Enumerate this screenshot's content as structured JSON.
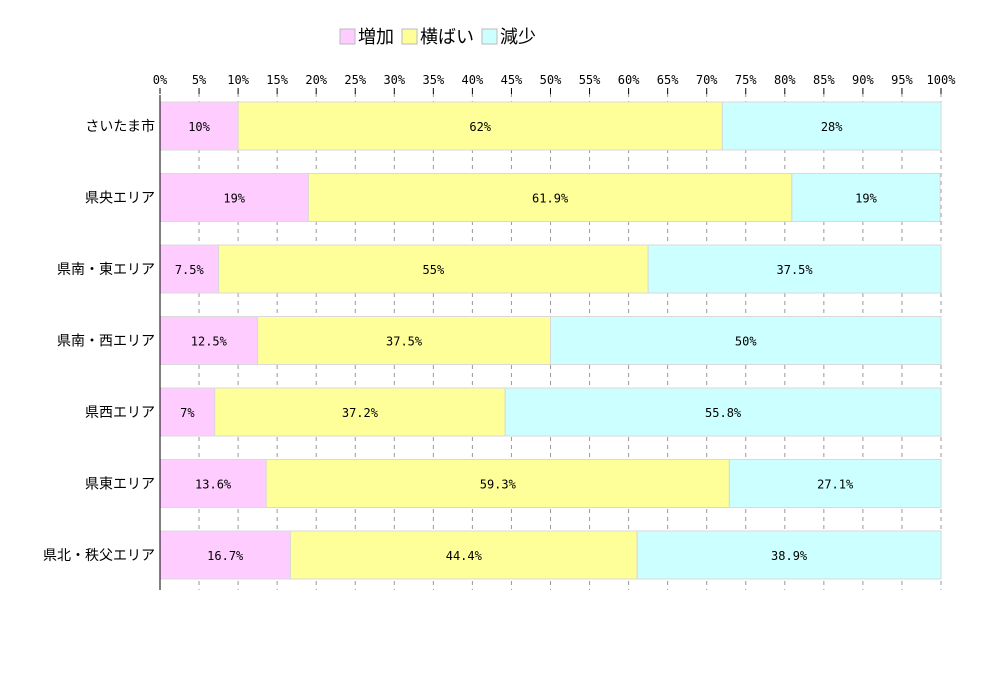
{
  "chart_data": {
    "type": "bar",
    "orientation": "horizontal",
    "stacked": true,
    "percent_stacked": true,
    "xlim": [
      0,
      100
    ],
    "xticks": [
      "0%",
      "5%",
      "10%",
      "15%",
      "20%",
      "25%",
      "30%",
      "35%",
      "40%",
      "45%",
      "50%",
      "55%",
      "60%",
      "65%",
      "70%",
      "75%",
      "80%",
      "85%",
      "90%",
      "95%",
      "100%"
    ],
    "grid": "vertical dashed",
    "legend_placement": "top-center",
    "categories": [
      "さいたま市",
      "県央エリア",
      "県南・東エリア",
      "県南・西エリア",
      "県西エリア",
      "県東エリア",
      "県北・秩父エリア"
    ],
    "series": [
      {
        "name": "増加",
        "color": "#ffccff",
        "values": [
          10,
          19,
          7.5,
          12.5,
          7,
          13.6,
          16.7
        ],
        "labels": [
          "10%",
          "19%",
          "7.5%",
          "12.5%",
          "7%",
          "13.6%",
          "16.7%"
        ]
      },
      {
        "name": "横ばい",
        "color": "#ffff99",
        "values": [
          62,
          61.9,
          55,
          37.5,
          37.2,
          59.3,
          44.4
        ],
        "labels": [
          "62%",
          "61.9%",
          "55%",
          "37.5%",
          "37.2%",
          "59.3%",
          "44.4%"
        ]
      },
      {
        "name": "減少",
        "color": "#ccffff",
        "values": [
          28,
          19,
          37.5,
          50,
          55.8,
          27.1,
          38.9
        ],
        "labels": [
          "28%",
          "19%",
          "37.5%",
          "50%",
          "55.8%",
          "27.1%",
          "38.9%"
        ]
      }
    ]
  }
}
